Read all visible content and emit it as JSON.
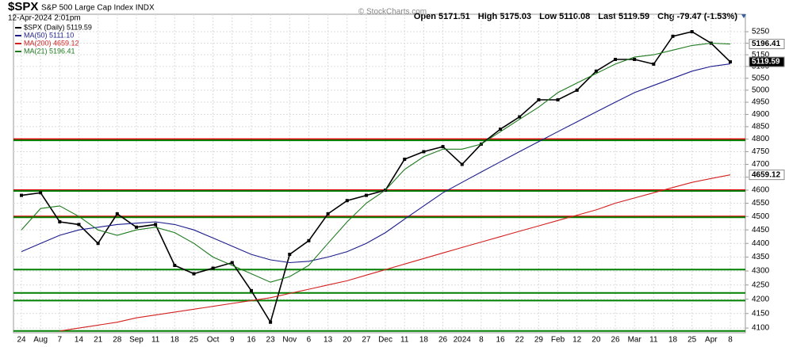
{
  "chart_data": {
    "type": "line",
    "symbol": "$SPX",
    "subtitle": "S&P 500 Large Cap Index INDX",
    "date": "12-Apr-2024 2:01pm",
    "quote": [
      "Open 5171.51",
      "High 5175.03",
      "Low 5110.08",
      "Last 5119.59",
      "Chg -79.47 (-1.53%)"
    ],
    "watermark": "© StockCharts.com",
    "log_scale": true,
    "grid": true,
    "categories": [
      "24",
      "Aug",
      "7",
      "14",
      "21",
      "28",
      "Sep",
      "11",
      "18",
      "25",
      "Oct",
      "9",
      "16",
      "23",
      "Nov",
      "6",
      "13",
      "20",
      "27",
      "Dec",
      "11",
      "18",
      "26",
      "2024",
      "8",
      "16",
      "22",
      "29",
      "Feb",
      "12",
      "20",
      "26",
      "Mar",
      "11",
      "18",
      "25",
      "Apr",
      "8"
    ],
    "series": [
      {
        "name": "$SPX (Daily) 5119.59",
        "color": "#000000",
        "values": [
          4580,
          4590,
          4480,
          4470,
          4400,
          4510,
          4460,
          4470,
          4320,
          4290,
          4310,
          4330,
          4230,
          4120,
          4360,
          4410,
          4510,
          4560,
          4580,
          4600,
          4720,
          4750,
          4770,
          4700,
          4780,
          4840,
          4890,
          4960,
          4960,
          5000,
          5080,
          5130,
          5130,
          5110,
          5230,
          5250,
          5200,
          5119.59
        ]
      },
      {
        "name": "MA(50) 5111.10",
        "color": "#1c1c8c",
        "values": [
          4370,
          4400,
          4430,
          4450,
          4460,
          4470,
          4475,
          4480,
          4470,
          4450,
          4420,
          4390,
          4360,
          4340,
          4330,
          4335,
          4350,
          4370,
          4400,
          4440,
          4490,
          4540,
          4590,
          4630,
          4670,
          4710,
          4750,
          4790,
          4830,
          4870,
          4910,
          4950,
          4990,
          5020,
          5050,
          5080,
          5100,
          5111.1
        ]
      },
      {
        "name": "MA(200) 4659.12",
        "color": "#d42020",
        "values": [
          null,
          null,
          4090,
          4100,
          4110,
          4120,
          4135,
          4145,
          4155,
          4165,
          4175,
          4185,
          4195,
          4205,
          4220,
          4235,
          4250,
          4265,
          4285,
          4305,
          4325,
          4345,
          4365,
          4385,
          4405,
          4425,
          4445,
          4465,
          4485,
          4505,
          4525,
          4550,
          4570,
          4590,
          4610,
          4630,
          4645,
          4659.12
        ]
      },
      {
        "name": "MA(21) 5196.41",
        "color": "#1e7a1e",
        "values": [
          4450,
          4530,
          4540,
          4500,
          4450,
          4430,
          4450,
          4460,
          4440,
          4400,
          4350,
          4320,
          4290,
          4260,
          4280,
          4320,
          4400,
          4480,
          4550,
          4600,
          4680,
          4730,
          4760,
          4760,
          4780,
          4830,
          4880,
          4930,
          4990,
          5030,
          5070,
          5110,
          5140,
          5150,
          5170,
          5190,
          5200,
          5196.41
        ]
      }
    ],
    "levels": [
      {
        "value": 4800,
        "color": "#e00000"
      },
      {
        "value": 4600,
        "color": "#e00000"
      },
      {
        "value": 4500,
        "color": "#e00000"
      },
      {
        "value": 4795,
        "color": "#008000"
      },
      {
        "value": 4597,
        "color": "#008000"
      },
      {
        "value": 4497,
        "color": "#008000"
      },
      {
        "value": 4305,
        "color": "#008000"
      },
      {
        "value": 4222,
        "color": "#008000"
      },
      {
        "value": 4195,
        "color": "#008000"
      },
      {
        "value": 4090,
        "color": "#008000"
      }
    ],
    "price_tags": [
      {
        "value": 5196.41,
        "label": "5196.41",
        "color": "#ffffff"
      },
      {
        "value": 5119.59,
        "label": "5119.59",
        "color": "#000000"
      },
      {
        "value": 4659.12,
        "label": "4659.12",
        "color": "#ffffff"
      }
    ],
    "ylim": [
      4084,
      5327
    ],
    "yticks": [
      4100,
      4150,
      4200,
      4250,
      4300,
      4350,
      4400,
      4450,
      4500,
      4550,
      4600,
      4650,
      4700,
      4750,
      4800,
      4850,
      4900,
      4950,
      5000,
      5050,
      5100,
      5150,
      5200,
      5250
    ]
  }
}
